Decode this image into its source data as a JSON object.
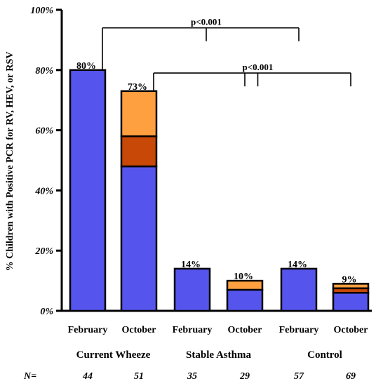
{
  "chart_data": {
    "type": "bar",
    "stacked": true,
    "title": "",
    "ylabel": "% Children with Positive PCR  for RV, HEV, or RSV",
    "ylim": [
      0,
      100
    ],
    "yticks": [
      {
        "value": 0,
        "label": "0%"
      },
      {
        "value": 20,
        "label": "20%"
      },
      {
        "value": 40,
        "label": "40%"
      },
      {
        "value": 60,
        "label": "60%"
      },
      {
        "value": 80,
        "label": "80%"
      },
      {
        "value": 100,
        "label": "100%"
      }
    ],
    "categories": [
      "February",
      "October",
      "February",
      "October",
      "February",
      "October"
    ],
    "groups": [
      {
        "label": "Current Wheeze",
        "span": [
          0,
          1
        ]
      },
      {
        "label": "Stable Asthma",
        "span": [
          2,
          3
        ]
      },
      {
        "label": "Control",
        "span": [
          4,
          5
        ]
      }
    ],
    "series": [
      {
        "values": [
          80,
          48,
          14,
          7,
          14,
          6
        ],
        "color": "#5555ee"
      },
      {
        "values": [
          0,
          10,
          0,
          0,
          0,
          1.5
        ],
        "color": "#c84808"
      },
      {
        "values": [
          0,
          15,
          0,
          3,
          0,
          1.5
        ],
        "color": "#ffa040"
      }
    ],
    "bar_labels": [
      "80%",
      "73%",
      "14%",
      "10%",
      "14%",
      "9%"
    ],
    "n_prefix": "N=",
    "n_values": [
      "44",
      "51",
      "35",
      "29",
      "57",
      "69"
    ],
    "comparisons": [
      {
        "from": 0,
        "to": [
          4
        ],
        "y_level": 94,
        "label": "p<0.001"
      },
      {
        "from": 1,
        "to": [
          3,
          5
        ],
        "y_level": 79,
        "label": "p<0.001"
      }
    ]
  }
}
